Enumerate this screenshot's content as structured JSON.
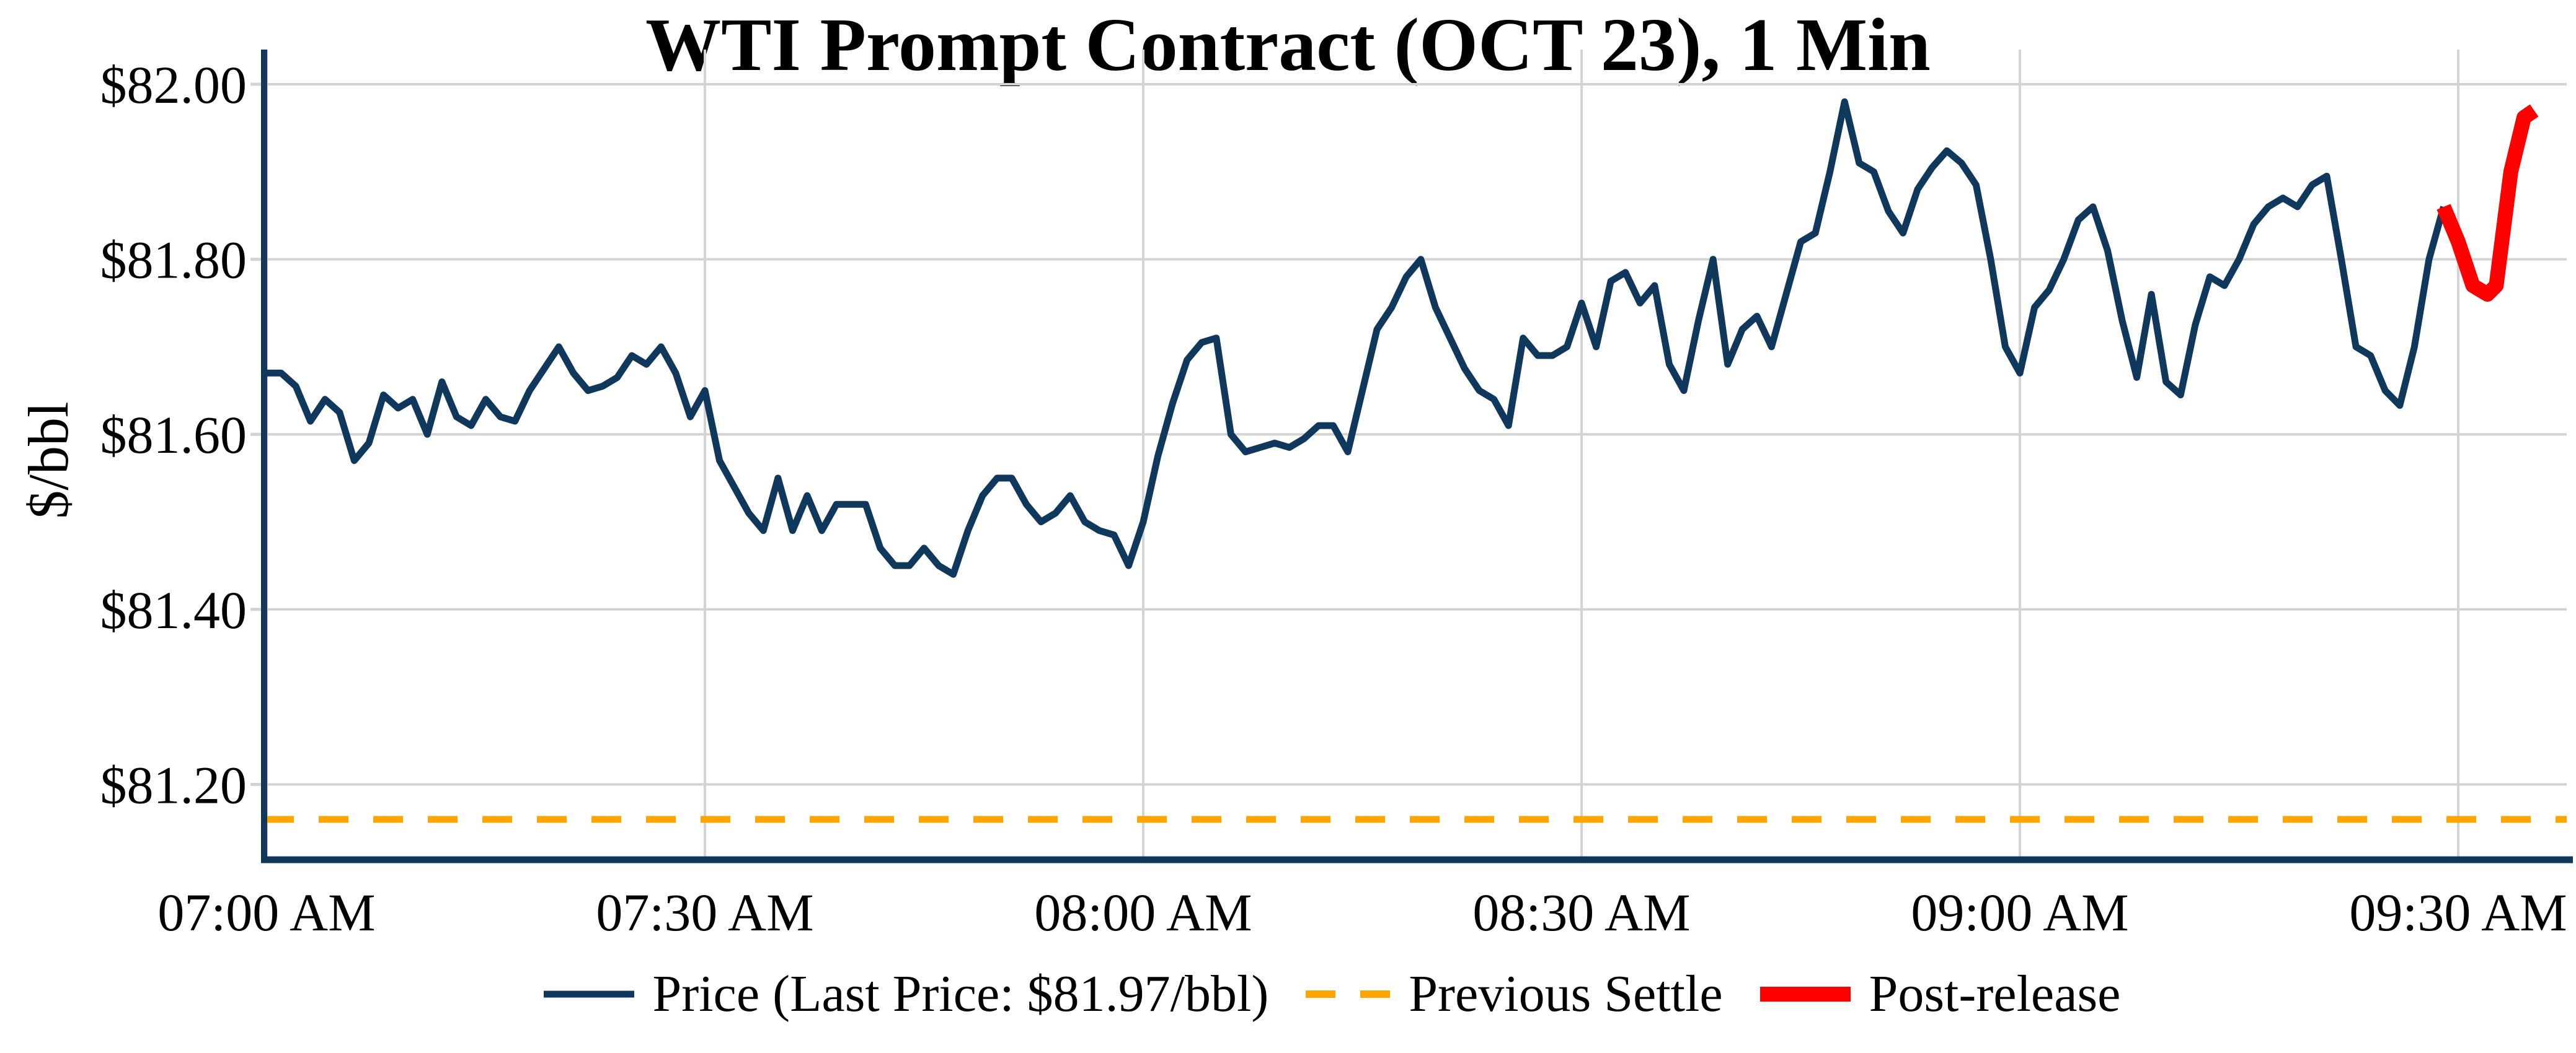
{
  "title": "WTI Prompt Contract (OCT 23), 1 Min",
  "axes": {
    "ylabel": "$/bbl",
    "y_tick_labels": [
      "$81.20",
      "$81.40",
      "$81.60",
      "$81.80",
      "$82.00"
    ],
    "x_tick_labels": [
      "07:00 AM",
      "07:30 AM",
      "08:00 AM",
      "08:30 AM",
      "09:00 AM",
      "09:30 AM"
    ]
  },
  "legend": {
    "price_label": "Price (Last Price: $81.97/bbl)",
    "settle_label": "Previous Settle",
    "post_release_label": "Post-release"
  },
  "colors": {
    "price_line": "#10375C",
    "previous_settle": "#FFA500",
    "post_release": "#FF0000",
    "gridline": "#D3D3D3",
    "text": "#000000",
    "background": "#FFFFFF"
  },
  "chart_data": {
    "type": "line",
    "title": "WTI Prompt Contract (OCT 23), 1 Min",
    "xlabel": "",
    "ylabel": "$/bbl",
    "grid": true,
    "legend_position": "bottom-center",
    "x_axis": {
      "start_time": "07:00 AM",
      "step_minutes": 1,
      "tick_minutes": [
        0,
        30,
        60,
        90,
        120,
        150
      ],
      "tick_labels": [
        "07:00 AM",
        "07:30 AM",
        "08:00 AM",
        "08:30 AM",
        "09:00 AM",
        "09:30 AM"
      ],
      "xlim_minutes": [
        -0.2,
        157.5
      ]
    },
    "y_axis": {
      "tick_values": [
        81.2,
        81.4,
        81.6,
        81.8,
        82.0
      ],
      "tick_labels": [
        "$81.20",
        "$81.40",
        "$81.60",
        "$81.80",
        "$82.00"
      ],
      "ylim": [
        81.11,
        82.04
      ]
    },
    "previous_settle_value": 81.16,
    "last_price": 81.97,
    "series": [
      {
        "name": "Price (Last Price: $81.97/bbl)",
        "color": "#10375C",
        "style": "solid",
        "start_minute": 0,
        "values": [
          81.67,
          81.67,
          81.655,
          81.615,
          81.64,
          81.625,
          81.57,
          81.59,
          81.645,
          81.63,
          81.64,
          81.6,
          81.66,
          81.62,
          81.61,
          81.64,
          81.62,
          81.615,
          81.65,
          81.675,
          81.7,
          81.67,
          81.65,
          81.655,
          81.665,
          81.69,
          81.68,
          81.7,
          81.67,
          81.62,
          81.65,
          81.57,
          81.54,
          81.51,
          81.49,
          81.55,
          81.49,
          81.53,
          81.49,
          81.52,
          81.52,
          81.52,
          81.47,
          81.45,
          81.45,
          81.47,
          81.45,
          81.44,
          81.49,
          81.53,
          81.55,
          81.55,
          81.52,
          81.5,
          81.51,
          81.53,
          81.5,
          81.49,
          81.485,
          81.45,
          81.5,
          81.575,
          81.635,
          81.685,
          81.705,
          81.71,
          81.6,
          81.58,
          81.585,
          81.59,
          81.585,
          81.595,
          81.61,
          81.61,
          81.58,
          81.65,
          81.72,
          81.745,
          81.78,
          81.8,
          81.745,
          81.71,
          81.675,
          81.65,
          81.64,
          81.61,
          81.71,
          81.69,
          81.69,
          81.7,
          81.75,
          81.7,
          81.775,
          81.785,
          81.75,
          81.77,
          81.68,
          81.65,
          81.73,
          81.8,
          81.68,
          81.72,
          81.735,
          81.7,
          81.76,
          81.82,
          81.83,
          81.9,
          81.98,
          81.91,
          81.9,
          81.855,
          81.83,
          81.88,
          81.905,
          81.924,
          81.91,
          81.885,
          81.8,
          81.7,
          81.67,
          81.745,
          81.765,
          81.8,
          81.845,
          81.86,
          81.81,
          81.73,
          81.665,
          81.76,
          81.66,
          81.645,
          81.725,
          81.78,
          81.77,
          81.8,
          81.84,
          81.86,
          81.87,
          81.86,
          81.885,
          81.895,
          81.8,
          81.7,
          81.69,
          81.65,
          81.633,
          81.7,
          81.8,
          81.86
        ]
      },
      {
        "name": "Previous Settle",
        "color": "#FFA500",
        "style": "dashed",
        "value": 81.16
      },
      {
        "name": "Post-release",
        "color": "#FF0000",
        "style": "solid-thick",
        "x_minutes": [
          149,
          150,
          151,
          152,
          152.6,
          153.6,
          154.5,
          155.2
        ],
        "values": [
          81.86,
          81.82,
          81.77,
          81.76,
          81.77,
          81.9,
          81.962,
          81.97
        ]
      }
    ]
  }
}
